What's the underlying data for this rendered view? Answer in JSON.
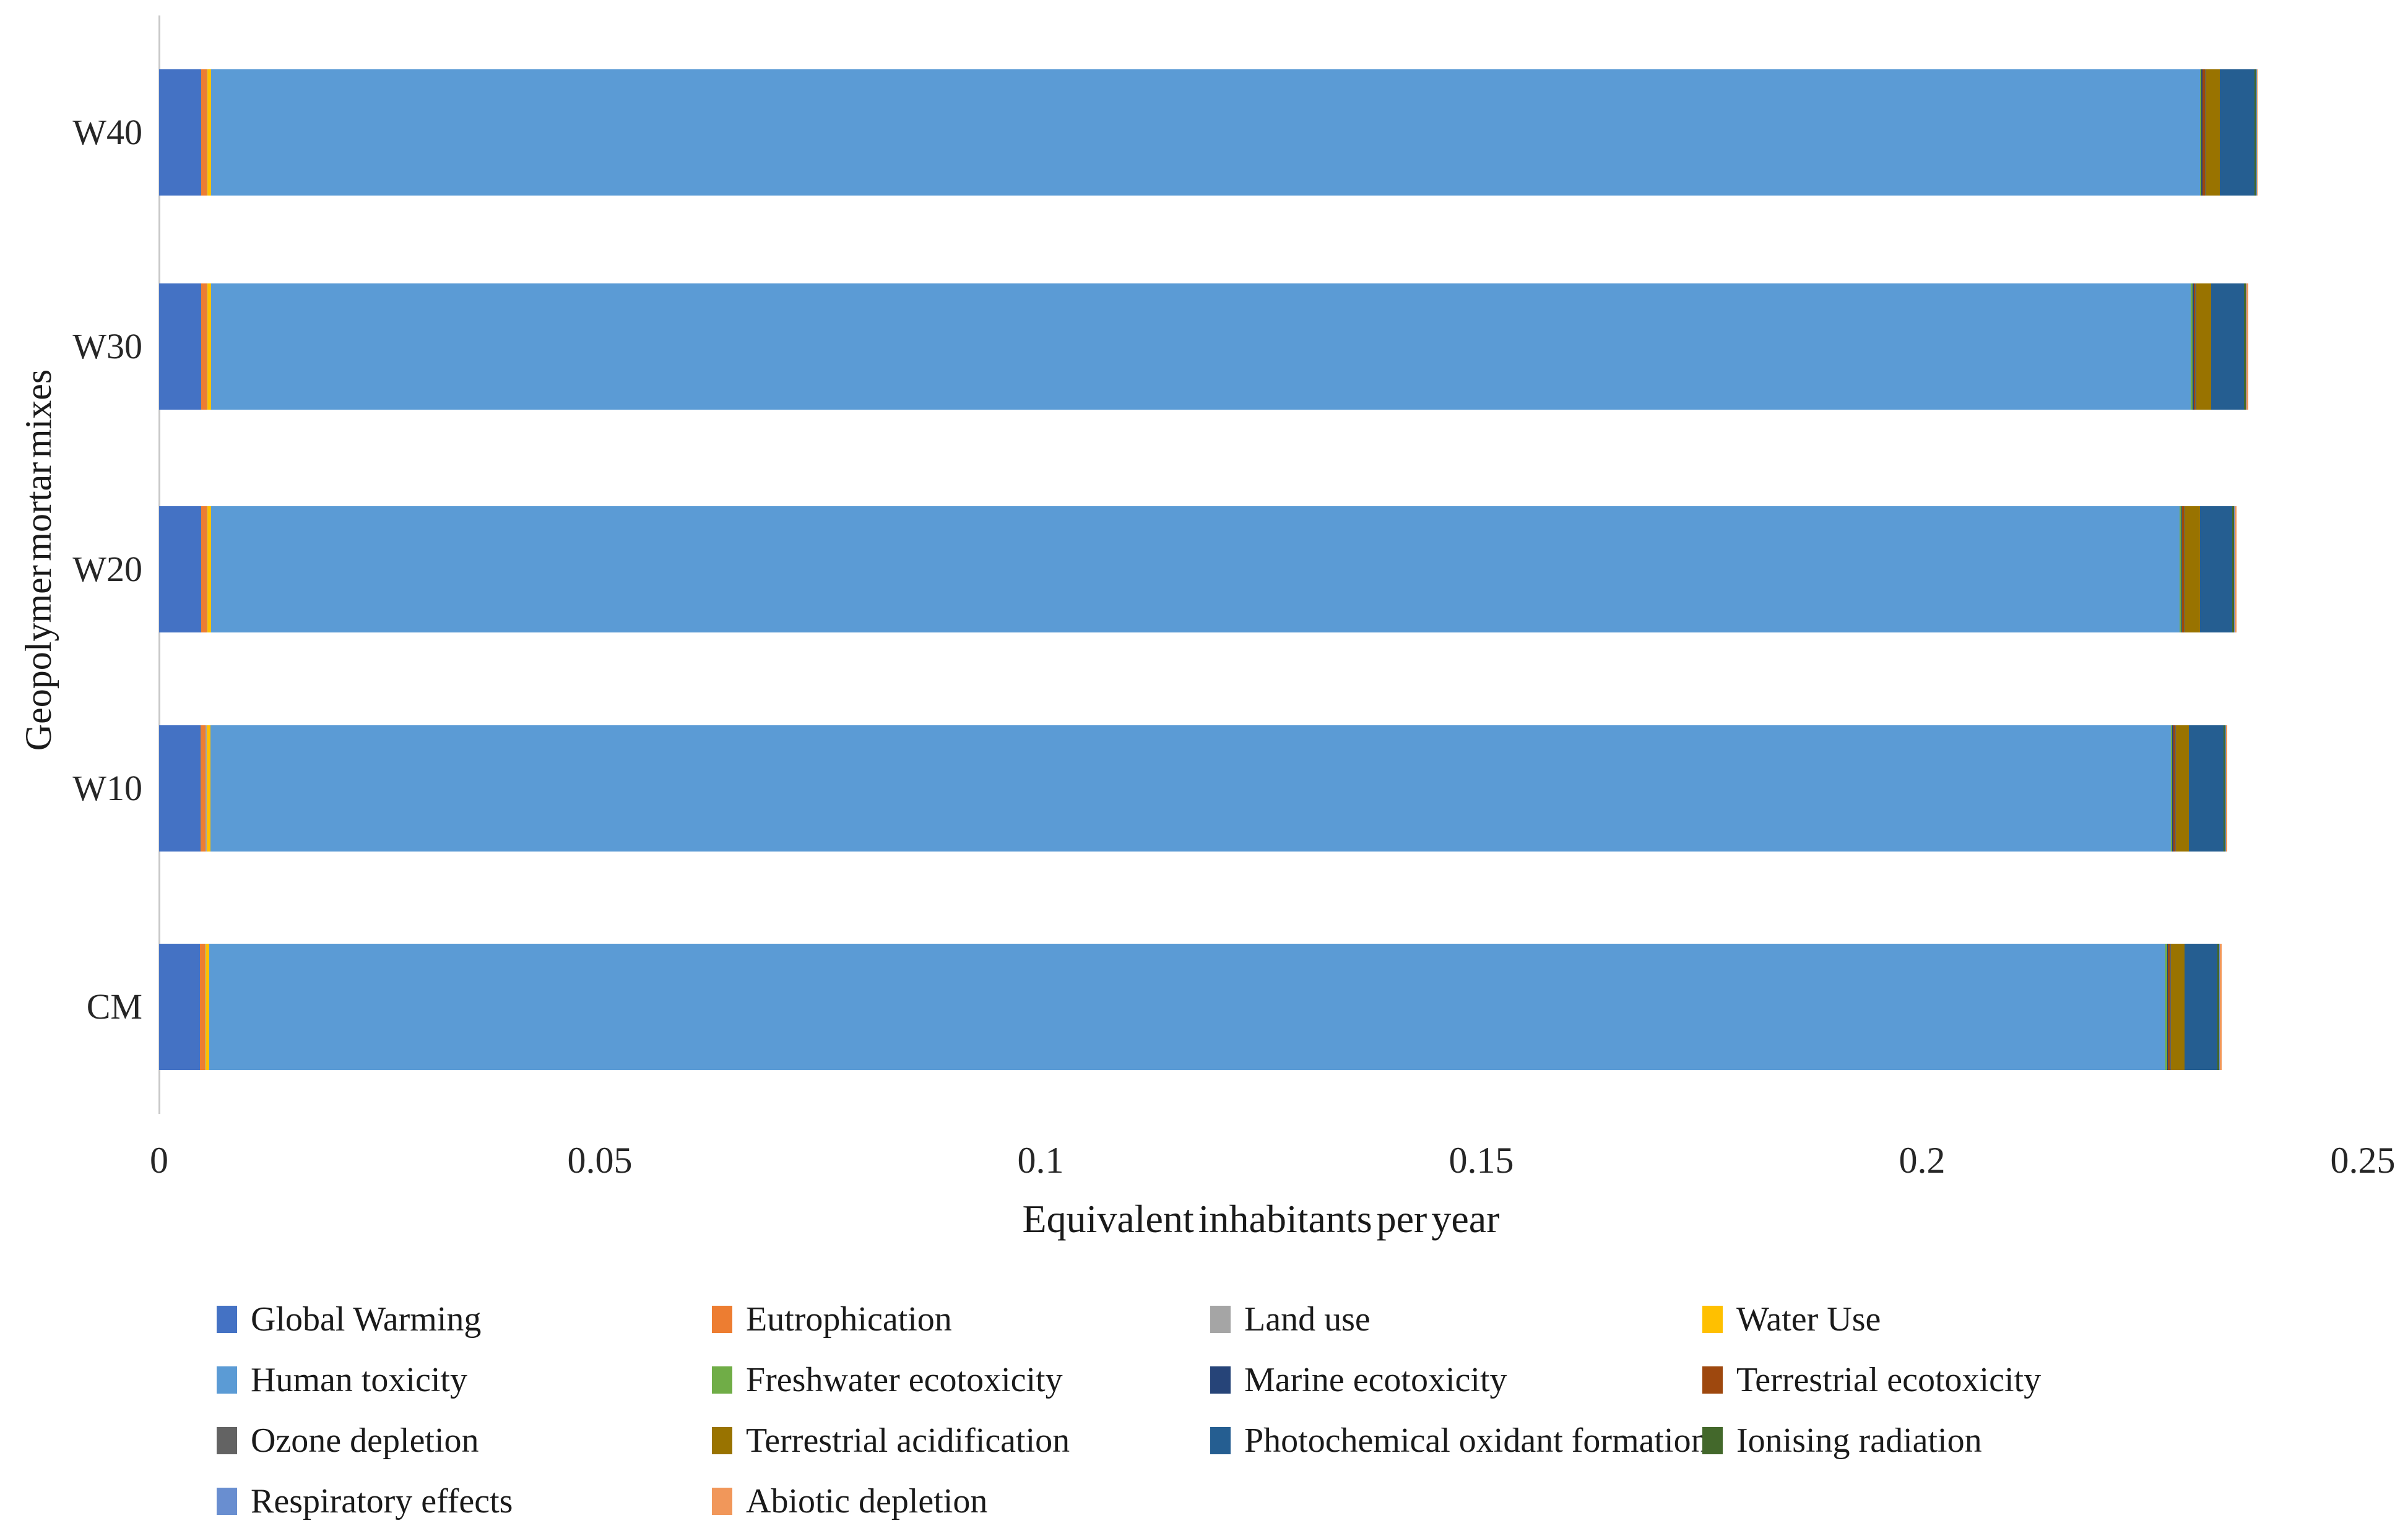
{
  "chart_data": {
    "type": "bar",
    "orientation": "horizontal",
    "stacked": true,
    "title": "",
    "xlabel": "Equivalent inhabitants per year",
    "ylabel": "Geopolymer mortar mixes",
    "xlim": [
      0,
      0.25
    ],
    "xticks": [
      "0",
      "0.05",
      "0.1",
      "0.15",
      "0.2",
      "0.25"
    ],
    "xtick_values": [
      0,
      0.05,
      0.1,
      0.15,
      0.2,
      0.25
    ],
    "grid": false,
    "legend_position": "bottom",
    "categories": [
      "W40",
      "W30",
      "W20",
      "W10",
      "CM"
    ],
    "series": [
      {
        "name": "Global Warming",
        "color": "#4472C4",
        "values": [
          0.0048,
          0.0048,
          0.0048,
          0.0047,
          0.0046
        ]
      },
      {
        "name": "Eutrophication",
        "color": "#ED7D31",
        "values": [
          0.0006,
          0.0006,
          0.0006,
          0.0006,
          0.0006
        ]
      },
      {
        "name": "Land use",
        "color": "#A5A5A5",
        "values": [
          0.0001,
          0.0001,
          0.0001,
          0.0001,
          0.0001
        ]
      },
      {
        "name": "Water Use",
        "color": "#FFC000",
        "values": [
          0.0004,
          0.0004,
          0.0004,
          0.0004,
          0.0004
        ]
      },
      {
        "name": "Human toxicity",
        "color": "#5B9BD5",
        "values": [
          0.2256,
          0.2246,
          0.2233,
          0.2224,
          0.2219
        ]
      },
      {
        "name": "Freshwater ecotoxicity",
        "color": "#70AD47",
        "values": [
          0.0002,
          0.0002,
          0.0002,
          0.0002,
          0.0002
        ]
      },
      {
        "name": "Marine ecotoxicity",
        "color": "#264478",
        "values": [
          0.0001,
          0.0001,
          0.0001,
          0.0001,
          0.0001
        ]
      },
      {
        "name": "Terrestrial ecotoxicity",
        "color": "#9E480E",
        "values": [
          0.0003,
          0.0002,
          0.0002,
          0.0002,
          0.0002
        ]
      },
      {
        "name": "Ozone depletion",
        "color": "#636363",
        "values": [
          0.0001,
          0.0001,
          0.0001,
          0.0001,
          0.0001
        ]
      },
      {
        "name": "Terrestrial acidification",
        "color": "#997300",
        "values": [
          0.0016,
          0.0017,
          0.0017,
          0.0015,
          0.0016
        ]
      },
      {
        "name": "Photochemical oxidant formation",
        "color": "#255E91",
        "values": [
          0.0039,
          0.0037,
          0.0037,
          0.0039,
          0.0037
        ]
      },
      {
        "name": "Ionising radiation",
        "color": "#43682B",
        "values": [
          0.0002,
          0.0002,
          0.0002,
          0.0002,
          0.0002
        ]
      },
      {
        "name": "Respiratory effects",
        "color": "#698ED0",
        "values": [
          0.0001,
          0.0001,
          0.0001,
          0.0001,
          0.0001
        ]
      },
      {
        "name": "Abiotic depletion",
        "color": "#F1975A",
        "values": [
          0.0001,
          0.0002,
          0.0002,
          0.0001,
          0.0002
        ]
      }
    ]
  },
  "colors": {
    "background": "#FFFFFF",
    "axis_line": "#C9C9C9",
    "text": "#262626"
  }
}
